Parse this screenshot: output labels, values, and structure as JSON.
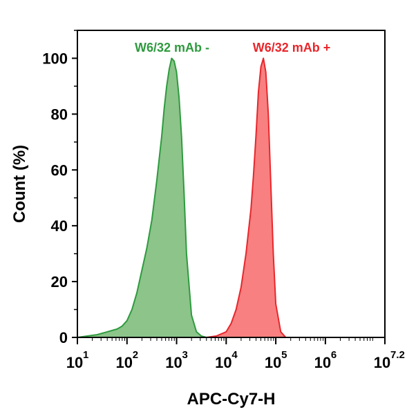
{
  "chart_data": {
    "type": "area",
    "xlabel": "APC-Cy7-H",
    "ylabel": "Count  (%)",
    "xscale": "log10",
    "xlim": [
      1,
      7.2
    ],
    "ylim": [
      0,
      110
    ],
    "grid": false,
    "legend": "top, inline labels above peaks",
    "x_ticks": [
      {
        "base": "10",
        "exp": "1",
        "value": 1
      },
      {
        "base": "10",
        "exp": "2",
        "value": 2
      },
      {
        "base": "10",
        "exp": "3",
        "value": 3
      },
      {
        "base": "10",
        "exp": "4",
        "value": 4
      },
      {
        "base": "10",
        "exp": "5",
        "value": 5
      },
      {
        "base": "10",
        "exp": "6",
        "value": 6
      },
      {
        "base": "10",
        "exp": "7.2",
        "value": 7.2
      }
    ],
    "y_ticks": [
      0,
      20,
      40,
      60,
      80,
      100
    ],
    "series": [
      {
        "name": "W6/32 mAb -",
        "color": "#2e9a3e",
        "fill": "#8cc48a",
        "x": [
          1.0,
          1.2,
          1.4,
          1.6,
          1.8,
          1.9,
          2.0,
          2.1,
          2.2,
          2.3,
          2.4,
          2.5,
          2.6,
          2.7,
          2.75,
          2.8,
          2.85,
          2.9,
          2.95,
          3.0,
          3.05,
          3.1,
          3.15,
          3.2,
          3.3,
          3.4,
          3.5,
          3.6
        ],
        "y": [
          0,
          0.5,
          1,
          2,
          3,
          4,
          6,
          10,
          16,
          24,
          32,
          42,
          56,
          72,
          82,
          90,
          96,
          100,
          99,
          95,
          86,
          72,
          52,
          30,
          8,
          2,
          0.5,
          0
        ]
      },
      {
        "name": "W6/32 mAb +",
        "color": "#e8262b",
        "fill": "#f88080",
        "x": [
          3.6,
          3.8,
          4.0,
          4.1,
          4.2,
          4.3,
          4.4,
          4.5,
          4.55,
          4.6,
          4.65,
          4.7,
          4.75,
          4.8,
          4.85,
          4.9,
          4.95,
          5.0,
          5.1,
          5.2
        ],
        "y": [
          0,
          0.5,
          2,
          5,
          10,
          18,
          30,
          46,
          58,
          72,
          88,
          97,
          100,
          95,
          80,
          55,
          30,
          12,
          2,
          0
        ]
      }
    ]
  }
}
